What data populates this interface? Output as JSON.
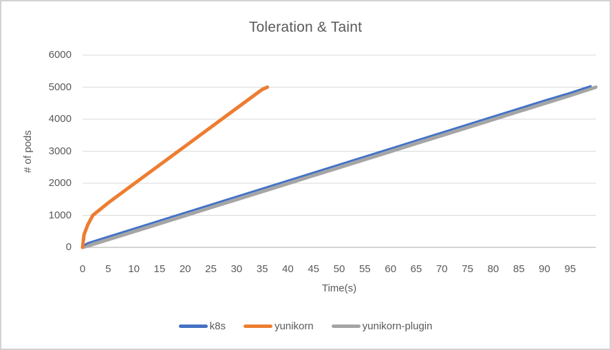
{
  "chart_data": {
    "type": "line",
    "title": "Toleration & Taint",
    "xlabel": "Time(s)",
    "ylabel": "# of pods",
    "xlim": [
      0,
      100
    ],
    "ylim": [
      0,
      6000
    ],
    "x_ticks": [
      0,
      5,
      10,
      15,
      20,
      25,
      30,
      35,
      40,
      45,
      50,
      55,
      60,
      65,
      70,
      75,
      80,
      85,
      90,
      95
    ],
    "y_ticks": [
      0,
      1000,
      2000,
      3000,
      4000,
      5000,
      6000
    ],
    "grid": true,
    "legend_position": "bottom",
    "series": [
      {
        "name": "k8s",
        "color": "#4472C4",
        "stroke_width": 3,
        "x": [
          0,
          1,
          2,
          5,
          10,
          15,
          20,
          25,
          30,
          35,
          40,
          45,
          50,
          55,
          60,
          65,
          70,
          75,
          80,
          85,
          90,
          95,
          99
        ],
        "y": [
          0,
          100,
          150,
          300,
          550,
          800,
          1050,
          1300,
          1550,
          1800,
          2050,
          2300,
          2550,
          2800,
          3050,
          3300,
          3550,
          3800,
          4050,
          4300,
          4550,
          4790,
          5000
        ]
      },
      {
        "name": "yunikorn",
        "color": "#ED7D31",
        "stroke_width": 5,
        "x": [
          0,
          0.3,
          1,
          2,
          5,
          10,
          15,
          20,
          25,
          30,
          35,
          36
        ],
        "y": [
          0,
          400,
          700,
          1000,
          1390,
          1980,
          2570,
          3160,
          3750,
          4340,
          4930,
          5000
        ]
      },
      {
        "name": "yunikorn-plugin",
        "color": "#A5A5A5",
        "stroke_width": 5,
        "x": [
          0,
          1,
          2,
          5,
          10,
          15,
          20,
          25,
          30,
          35,
          40,
          45,
          50,
          55,
          60,
          65,
          70,
          75,
          80,
          85,
          90,
          95,
          100
        ],
        "y": [
          0,
          40,
          90,
          240,
          490,
          740,
          990,
          1240,
          1490,
          1740,
          1990,
          2240,
          2490,
          2740,
          2990,
          3240,
          3490,
          3740,
          3990,
          4240,
          4490,
          4740,
          5000
        ]
      }
    ]
  },
  "styles": {
    "text_color": "#595959",
    "grid_color": "#D9D9D9",
    "axis_color": "#C6C6C6",
    "border_color": "#D2D2D2",
    "background": "#FFFFFF"
  }
}
